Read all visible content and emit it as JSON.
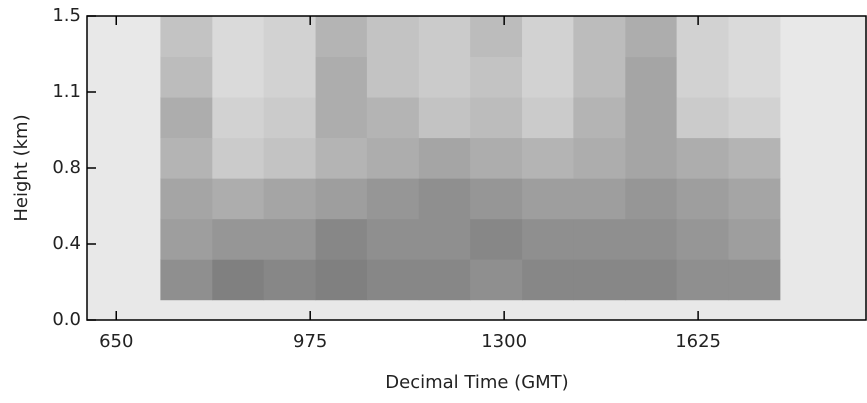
{
  "chart_data": {
    "type": "heatmap",
    "x_label": "Decimal Time (GMT)",
    "y_label": "Height (km)",
    "xlim": [
      601,
      1908
    ],
    "xticks": [
      650,
      975,
      1300,
      1625
    ],
    "ylim": [
      0,
      1.5
    ],
    "yticks": [
      {
        "value": 0,
        "label": "0.0"
      },
      {
        "value": 0.375,
        "label": "0.4"
      },
      {
        "value": 0.75,
        "label": "0.8"
      },
      {
        "value": 1.125,
        "label": "1.1"
      },
      {
        "value": 1.5,
        "label": "1.5"
      }
    ],
    "x_edges": [
      724,
      811,
      897,
      984,
      1070,
      1157,
      1243,
      1330,
      1416,
      1503,
      1589,
      1676,
      1762
    ],
    "y_edges": [
      0.1,
      0.3,
      0.5,
      0.7,
      0.9,
      1.1,
      1.3,
      1.5
    ],
    "z": [
      [
        0.55,
        0.65,
        0.6,
        0.65,
        0.6,
        0.6,
        0.55,
        0.6,
        0.6,
        0.6,
        0.55,
        0.55
      ],
      [
        0.45,
        0.5,
        0.5,
        0.6,
        0.55,
        0.55,
        0.6,
        0.55,
        0.55,
        0.55,
        0.5,
        0.45
      ],
      [
        0.4,
        0.35,
        0.4,
        0.45,
        0.5,
        0.55,
        0.5,
        0.45,
        0.45,
        0.5,
        0.45,
        0.4
      ],
      [
        0.3,
        0.15,
        0.2,
        0.3,
        0.35,
        0.4,
        0.35,
        0.3,
        0.35,
        0.4,
        0.35,
        0.3
      ],
      [
        0.35,
        0.1,
        0.15,
        0.35,
        0.3,
        0.2,
        0.25,
        0.15,
        0.3,
        0.4,
        0.15,
        0.1
      ],
      [
        0.25,
        0.05,
        0.1,
        0.35,
        0.2,
        0.15,
        0.2,
        0.1,
        0.25,
        0.4,
        0.1,
        0.05
      ],
      [
        0.2,
        0.05,
        0.1,
        0.3,
        0.2,
        0.15,
        0.25,
        0.1,
        0.25,
        0.35,
        0.1,
        0.05
      ]
    ]
  }
}
